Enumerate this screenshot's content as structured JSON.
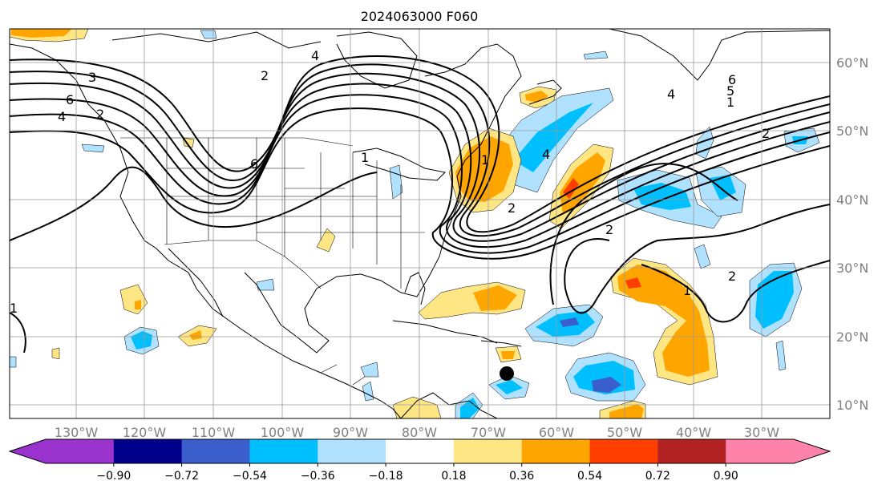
{
  "title": "2024063000 F060",
  "map": {
    "lon_labels": [
      "130°W",
      "120°W",
      "110°W",
      "100°W",
      "90°W",
      "80°W",
      "70°W",
      "60°W",
      "50°W",
      "40°W",
      "30°W"
    ],
    "lat_labels": [
      "60°N",
      "50°N",
      "40°N",
      "30°N",
      "20°N",
      "10°N"
    ],
    "contour_labels": [
      "4",
      "3",
      "4",
      "6",
      "4",
      "6",
      "2",
      "2",
      "2",
      "1",
      "2",
      "4",
      "5",
      "6",
      "1",
      "1",
      "2",
      "1",
      "2",
      "1"
    ],
    "marker": "storm-center-dot"
  },
  "colorbar": {
    "colors": [
      "#9a32cd",
      "#00008b",
      "#3a5fcd",
      "#00bfff",
      "#b0e2ff",
      "#ffffff",
      "#ffe685",
      "#ffa500",
      "#ff3e00",
      "#b22222",
      "#ff82ab"
    ],
    "under_color": "#9a32cd",
    "over_color": "#ff82ab",
    "tick_labels": [
      "−0.90",
      "−0.72",
      "−0.54",
      "−0.36",
      "−0.18",
      "0.18",
      "0.36",
      "0.54",
      "0.72",
      "0.90"
    ]
  }
}
